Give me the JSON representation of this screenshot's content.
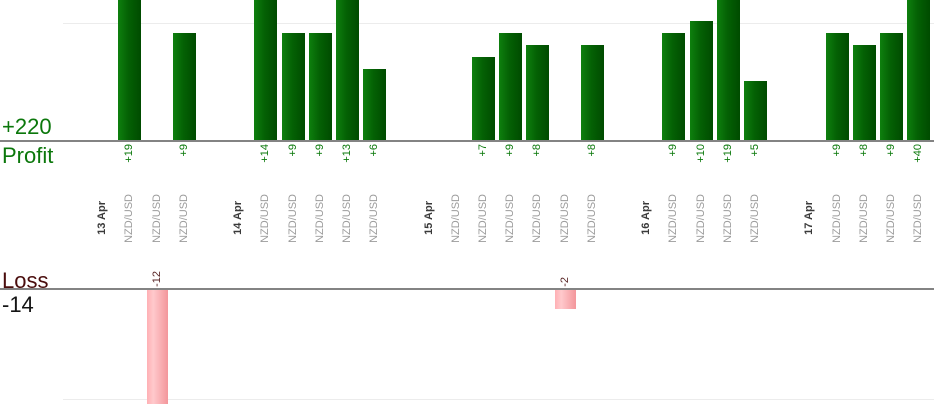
{
  "labels": {
    "profit_total": "+220",
    "profit_axis": "Profit",
    "loss_axis": "Loss",
    "loss_total": "-14"
  },
  "chart_data": {
    "type": "bar",
    "orientation": "vertical",
    "description": "Per-trade profit (green, top pane) and loss (pink, bottom pane) grouped by date; tall profit bars are cropped at the top edge",
    "panes": [
      {
        "name": "profit",
        "baseline_label": "+220",
        "axis_label": "Profit",
        "bar_color": "#0a6e0a",
        "value_text_color": "#0c7a0c"
      },
      {
        "name": "loss",
        "baseline_label": "-14",
        "axis_label": "Loss",
        "bar_color": "#f9a9ad",
        "value_text_color": "#5a2727"
      }
    ],
    "groups": [
      {
        "date": "13 Apr",
        "trades": [
          {
            "symbol": "NZD/USD",
            "value": 19
          },
          {
            "symbol": "NZD/USD",
            "value": -12
          },
          {
            "symbol": "NZD/USD",
            "value": 9
          }
        ]
      },
      {
        "date": "14 Apr",
        "trades": [
          {
            "symbol": "NZD/USD",
            "value": 14
          },
          {
            "symbol": "NZD/USD",
            "value": 9
          },
          {
            "symbol": "NZD/USD",
            "value": 9
          },
          {
            "symbol": "NZD/USD",
            "value": 13
          },
          {
            "symbol": "NZD/USD",
            "value": 6
          }
        ]
      },
      {
        "date": "15 Apr",
        "trades": [
          {
            "symbol": "NZD/USD",
            "value": 0
          },
          {
            "symbol": "NZD/USD",
            "value": 7
          },
          {
            "symbol": "NZD/USD",
            "value": 9
          },
          {
            "symbol": "NZD/USD",
            "value": 8
          },
          {
            "symbol": "NZD/USD",
            "value": -2
          },
          {
            "symbol": "NZD/USD",
            "value": 8
          }
        ]
      },
      {
        "date": "16 Apr",
        "trades": [
          {
            "symbol": "NZD/USD",
            "value": 9
          },
          {
            "symbol": "NZD/USD",
            "value": 10
          },
          {
            "symbol": "NZD/USD",
            "value": 19
          },
          {
            "symbol": "NZD/USD",
            "value": 5
          }
        ]
      },
      {
        "date": "17 Apr",
        "trades": [
          {
            "symbol": "NZD/USD",
            "value": 9
          },
          {
            "symbol": "NZD/USD",
            "value": 8
          },
          {
            "symbol": "NZD/USD",
            "value": 9
          },
          {
            "symbol": "NZD/USD",
            "value": 40
          }
        ]
      }
    ],
    "totals": {
      "profit": 220,
      "loss": -14
    },
    "value_label_format": "signed integer, e.g. +19 / -12; zero-value trades show no bar and no value label",
    "colors": {
      "profit_bar_gradient": [
        "#0e800e",
        "#004b00"
      ],
      "loss_bar_gradient": [
        "#ffb0b4",
        "#f3969b"
      ],
      "axis_line": "#838383",
      "gridline": "#ececec",
      "date_text": "#3a3a3a",
      "symbol_text": "#9c9c9c",
      "profit_text": "#0b770b",
      "loss_axis_text": "#4a0d0d",
      "loss_total_text": "#141414"
    },
    "grid": "single faint horizontal gridline in each pane"
  }
}
